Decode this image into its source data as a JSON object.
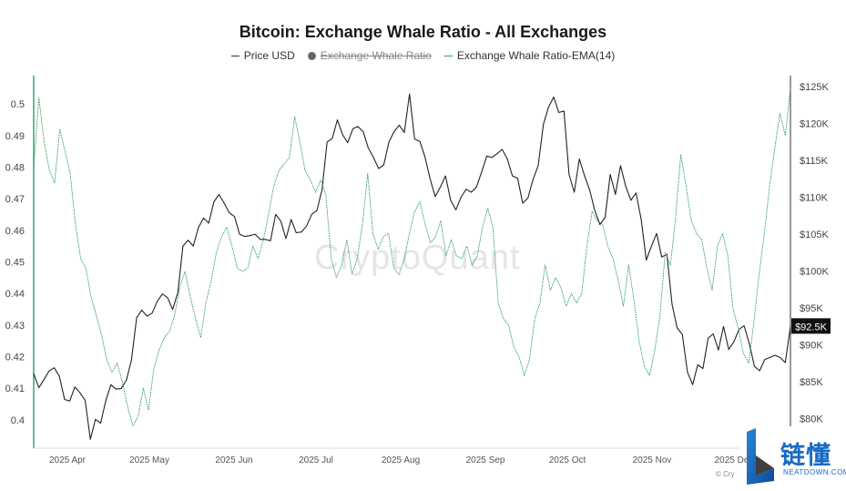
{
  "title": "Bitcoin: Exchange Whale Ratio - All Exchanges",
  "legend": [
    {
      "label": "Price USD",
      "marker": "line",
      "color": "#333333",
      "hidden": false
    },
    {
      "label": "Exchange Whale Ratio",
      "marker": "dot",
      "color": "#666666",
      "hidden": true
    },
    {
      "label": "Exchange Whale Ratio-EMA(14)",
      "marker": "line",
      "color": "#2f9a63",
      "hidden": false
    }
  ],
  "watermark": "CryptoQuant",
  "price_badge": "$92.5K",
  "copyright": "© Cry",
  "logo": {
    "cn": "链懂",
    "en": "NEATDOWN.COM"
  },
  "colors": {
    "price": "#222222",
    "ema": "#2f9a63",
    "axis_left": "#3aa66d",
    "badge_bg": "#111111"
  },
  "chart_data": {
    "type": "line",
    "title": "Bitcoin: Exchange Whale Ratio - All Exchanges",
    "x_ticks": [
      "2025 Apr",
      "2025 May",
      "2025 Jun",
      "2025 Jul",
      "2025 Aug",
      "2025 Sep",
      "2025 Oct",
      "2025 Nov",
      "2025 Dec"
    ],
    "y_left": {
      "ticks": [
        0.4,
        0.41,
        0.42,
        0.43,
        0.44,
        0.45,
        0.46,
        0.47,
        0.48,
        0.49,
        0.5
      ],
      "range": [
        0.391,
        0.509
      ]
    },
    "y_right": {
      "tick_values": [
        80,
        85,
        90,
        95,
        100,
        105,
        110,
        115,
        120,
        125
      ],
      "tick_labels": [
        "$80K",
        "$85K",
        "$90K",
        "$95K",
        "$100K",
        "$105K",
        "$110K",
        "$115K",
        "$120K",
        "$125K"
      ],
      "range": [
        76,
        126.5
      ],
      "unit": "K USD"
    },
    "grid": false,
    "legend_position": "top-center",
    "series": [
      {
        "name": "Price USD",
        "axis": "right",
        "x_start": "2025-03-21",
        "x_end": "2025-12-23",
        "values": [
          86.1,
          84.2,
          85.3,
          86.5,
          86.9,
          85.7,
          82.6,
          82.4,
          84.3,
          83.5,
          82.5,
          77.2,
          79.9,
          79.4,
          82.4,
          84.6,
          84.0,
          84.1,
          85.2,
          88.0,
          93.7,
          94.7,
          93.9,
          94.3,
          95.9,
          96.9,
          96.4,
          94.8,
          97.1,
          103.4,
          104.2,
          103.4,
          105.9,
          107.2,
          106.5,
          109.4,
          110.4,
          109.2,
          107.9,
          107.4,
          105.0,
          104.7,
          104.8,
          105.0,
          104.3,
          104.3,
          104.1,
          107.7,
          106.8,
          104.4,
          107.0,
          105.2,
          105.3,
          106.1,
          107.7,
          108.2,
          111.0,
          117.5,
          118.0,
          120.5,
          118.5,
          117.4,
          119.3,
          119.6,
          118.9,
          116.7,
          115.4,
          113.9,
          114.4,
          117.5,
          118.9,
          119.8,
          118.8,
          124.0,
          117.9,
          117.6,
          115.5,
          112.5,
          110.1,
          111.4,
          112.9,
          109.6,
          108.3,
          110.0,
          111.1,
          110.7,
          111.4,
          113.4,
          115.6,
          115.4,
          115.9,
          116.5,
          115.2,
          112.9,
          112.6,
          109.2,
          109.9,
          112.4,
          114.3,
          119.9,
          122.2,
          123.6,
          121.5,
          121.7,
          113.1,
          110.7,
          115.2,
          112.9,
          111.0,
          108.2,
          106.3,
          107.3,
          113.1,
          110.4,
          114.3,
          111.5,
          109.6,
          110.6,
          107.0,
          101.5,
          103.4,
          105.1,
          101.9,
          102.3,
          95.5,
          92.3,
          91.4,
          86.3,
          84.6,
          87.3,
          86.8,
          90.9,
          91.5,
          89.3,
          92.5,
          89.4,
          90.4,
          92.1,
          92.6,
          90.2,
          87.1,
          86.5,
          88.0,
          88.3,
          88.6,
          88.3,
          87.6,
          92.5
        ],
        "note": "sampled every 2 days from chart"
      },
      {
        "name": "Exchange Whale Ratio-EMA(14)",
        "axis": "left",
        "x_start": "2025-03-21",
        "x_end": "2025-12-23",
        "values": [
          0.48,
          0.502,
          0.488,
          0.479,
          0.475,
          0.492,
          0.485,
          0.478,
          0.462,
          0.451,
          0.448,
          0.439,
          0.433,
          0.427,
          0.419,
          0.415,
          0.418,
          0.412,
          0.404,
          0.398,
          0.401,
          0.41,
          0.403,
          0.416,
          0.422,
          0.426,
          0.428,
          0.433,
          0.442,
          0.447,
          0.439,
          0.432,
          0.426,
          0.437,
          0.444,
          0.453,
          0.458,
          0.461,
          0.455,
          0.448,
          0.447,
          0.448,
          0.455,
          0.451,
          0.457,
          0.465,
          0.474,
          0.479,
          0.481,
          0.483,
          0.496,
          0.488,
          0.479,
          0.476,
          0.472,
          0.476,
          0.471,
          0.451,
          0.445,
          0.449,
          0.457,
          0.446,
          0.451,
          0.462,
          0.478,
          0.459,
          0.454,
          0.458,
          0.459,
          0.448,
          0.446,
          0.451,
          0.459,
          0.466,
          0.469,
          0.462,
          0.456,
          0.458,
          0.463,
          0.452,
          0.457,
          0.452,
          0.451,
          0.455,
          0.449,
          0.452,
          0.461,
          0.467,
          0.461,
          0.437,
          0.432,
          0.43,
          0.423,
          0.42,
          0.414,
          0.419,
          0.432,
          0.437,
          0.449,
          0.441,
          0.445,
          0.442,
          0.436,
          0.44,
          0.437,
          0.44,
          0.455,
          0.466,
          0.463,
          0.462,
          0.455,
          0.451,
          0.444,
          0.436,
          0.449,
          0.438,
          0.425,
          0.417,
          0.414,
          0.422,
          0.433,
          0.453,
          0.449,
          0.464,
          0.484,
          0.474,
          0.463,
          0.459,
          0.457,
          0.448,
          0.441,
          0.455,
          0.459,
          0.452,
          0.435,
          0.429,
          0.421,
          0.418,
          0.431,
          0.446,
          0.459,
          0.474,
          0.486,
          0.497,
          0.49,
          0.505
        ],
        "note": "sampled every 2 days from chart"
      }
    ]
  }
}
